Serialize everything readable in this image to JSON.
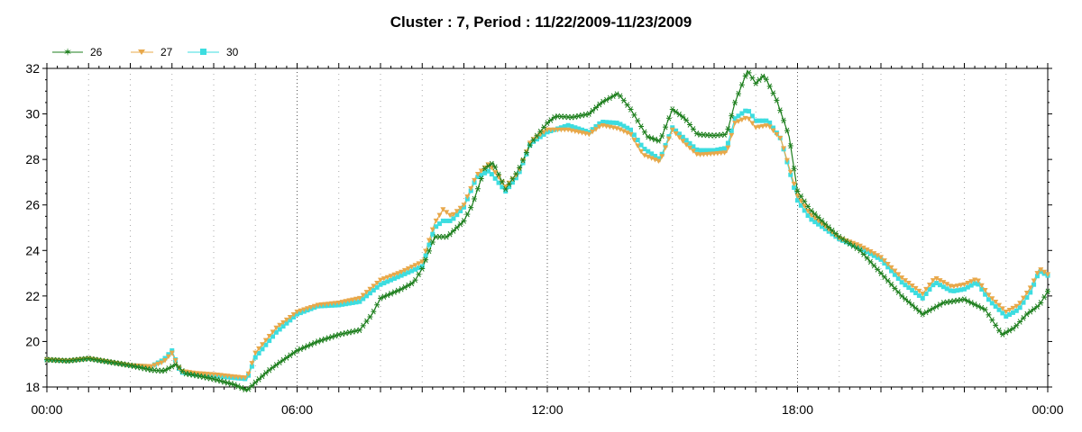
{
  "chart_data": {
    "type": "line",
    "title": "Cluster : 7, Period : 11/22/2009-11/23/2009",
    "xlabel": "",
    "ylabel": "",
    "x_tick_labels": [
      "00:00",
      "06:00",
      "12:00",
      "18:00",
      "00:00"
    ],
    "x_tick_hours": [
      0,
      6,
      12,
      18,
      24
    ],
    "xlim_hours": [
      0,
      24
    ],
    "ylim": [
      18,
      32
    ],
    "y_ticks": [
      18,
      20,
      22,
      24,
      26,
      28,
      30,
      32
    ],
    "grid": "dotted vertical lines",
    "legend_position": "top-left",
    "series": [
      {
        "name": "26",
        "color": "#1e7f1e",
        "marker": "asterisk",
        "points": [
          [
            0,
            19.2
          ],
          [
            0.5,
            19.15
          ],
          [
            1,
            19.25
          ],
          [
            1.5,
            19.1
          ],
          [
            2,
            18.95
          ],
          [
            2.5,
            18.75
          ],
          [
            2.8,
            18.7
          ],
          [
            3.1,
            19.0
          ],
          [
            3.3,
            18.6
          ],
          [
            3.6,
            18.5
          ],
          [
            4,
            18.35
          ],
          [
            4.5,
            18.1
          ],
          [
            4.8,
            17.85
          ],
          [
            5.0,
            18.2
          ],
          [
            5.3,
            18.7
          ],
          [
            5.6,
            19.1
          ],
          [
            6,
            19.6
          ],
          [
            6.5,
            20.0
          ],
          [
            7,
            20.3
          ],
          [
            7.5,
            20.5
          ],
          [
            7.8,
            21.2
          ],
          [
            8,
            21.9
          ],
          [
            8.5,
            22.3
          ],
          [
            8.8,
            22.6
          ],
          [
            9,
            23.2
          ],
          [
            9.3,
            24.6
          ],
          [
            9.6,
            24.6
          ],
          [
            10,
            25.3
          ],
          [
            10.2,
            26.0
          ],
          [
            10.5,
            27.6
          ],
          [
            10.7,
            27.85
          ],
          [
            11,
            26.7
          ],
          [
            11.3,
            27.5
          ],
          [
            11.6,
            28.7
          ],
          [
            12,
            29.6
          ],
          [
            12.2,
            29.9
          ],
          [
            12.6,
            29.85
          ],
          [
            13,
            30.0
          ],
          [
            13.3,
            30.5
          ],
          [
            13.7,
            30.9
          ],
          [
            14,
            30.2
          ],
          [
            14.4,
            29.0
          ],
          [
            14.7,
            28.8
          ],
          [
            15,
            30.2
          ],
          [
            15.3,
            29.8
          ],
          [
            15.6,
            29.1
          ],
          [
            16,
            29.05
          ],
          [
            16.3,
            29.1
          ],
          [
            16.5,
            30.5
          ],
          [
            16.8,
            31.9
          ],
          [
            17,
            31.35
          ],
          [
            17.2,
            31.7
          ],
          [
            17.5,
            30.6
          ],
          [
            17.8,
            29.0
          ],
          [
            18,
            26.6
          ],
          [
            18.3,
            25.8
          ],
          [
            18.7,
            25.1
          ],
          [
            19,
            24.6
          ],
          [
            19.5,
            24.0
          ],
          [
            20,
            23.0
          ],
          [
            20.5,
            22.0
          ],
          [
            21,
            21.2
          ],
          [
            21.5,
            21.7
          ],
          [
            22,
            21.85
          ],
          [
            22.5,
            21.4
          ],
          [
            22.9,
            20.3
          ],
          [
            23.2,
            20.6
          ],
          [
            23.5,
            21.2
          ],
          [
            23.8,
            21.6
          ],
          [
            24,
            22.2
          ]
        ]
      },
      {
        "name": "27",
        "color": "#e8a84a",
        "marker": "triangle-down",
        "points": [
          [
            0,
            19.2
          ],
          [
            0.5,
            19.15
          ],
          [
            1,
            19.25
          ],
          [
            1.5,
            19.1
          ],
          [
            2,
            18.95
          ],
          [
            2.5,
            18.9
          ],
          [
            2.8,
            19.1
          ],
          [
            3.0,
            19.5
          ],
          [
            3.2,
            18.7
          ],
          [
            3.6,
            18.6
          ],
          [
            4,
            18.55
          ],
          [
            4.5,
            18.45
          ],
          [
            4.8,
            18.4
          ],
          [
            5.0,
            19.5
          ],
          [
            5.5,
            20.6
          ],
          [
            6,
            21.3
          ],
          [
            6.5,
            21.6
          ],
          [
            7,
            21.7
          ],
          [
            7.5,
            21.9
          ],
          [
            8,
            22.7
          ],
          [
            8.5,
            23.05
          ],
          [
            9,
            23.5
          ],
          [
            9.3,
            25.2
          ],
          [
            9.5,
            25.8
          ],
          [
            9.7,
            25.5
          ],
          [
            10,
            26.0
          ],
          [
            10.3,
            27.3
          ],
          [
            10.6,
            27.8
          ],
          [
            11,
            26.8
          ],
          [
            11.3,
            27.4
          ],
          [
            11.6,
            28.8
          ],
          [
            12,
            29.3
          ],
          [
            12.5,
            29.3
          ],
          [
            13,
            29.1
          ],
          [
            13.3,
            29.5
          ],
          [
            13.7,
            29.35
          ],
          [
            14,
            29.1
          ],
          [
            14.3,
            28.2
          ],
          [
            14.7,
            27.9
          ],
          [
            15,
            29.3
          ],
          [
            15.3,
            28.7
          ],
          [
            15.6,
            28.2
          ],
          [
            16,
            28.25
          ],
          [
            16.3,
            28.3
          ],
          [
            16.5,
            29.6
          ],
          [
            16.8,
            29.85
          ],
          [
            17,
            29.4
          ],
          [
            17.3,
            29.5
          ],
          [
            17.6,
            28.9
          ],
          [
            18,
            26.4
          ],
          [
            18.3,
            25.6
          ],
          [
            18.7,
            25.0
          ],
          [
            19,
            24.55
          ],
          [
            19.5,
            24.2
          ],
          [
            20,
            23.7
          ],
          [
            20.5,
            22.8
          ],
          [
            21,
            22.1
          ],
          [
            21.3,
            22.8
          ],
          [
            21.7,
            22.4
          ],
          [
            22,
            22.5
          ],
          [
            22.3,
            22.75
          ],
          [
            22.6,
            22.0
          ],
          [
            23,
            21.3
          ],
          [
            23.3,
            21.6
          ],
          [
            23.6,
            22.4
          ],
          [
            23.8,
            23.2
          ],
          [
            24,
            22.95
          ]
        ]
      },
      {
        "name": "30",
        "color": "#3ddde0",
        "marker": "square",
        "points": [
          [
            0,
            19.2
          ],
          [
            0.5,
            19.15
          ],
          [
            1,
            19.25
          ],
          [
            1.5,
            19.1
          ],
          [
            2,
            18.95
          ],
          [
            2.5,
            18.9
          ],
          [
            2.8,
            19.2
          ],
          [
            3.0,
            19.6
          ],
          [
            3.2,
            18.65
          ],
          [
            3.6,
            18.55
          ],
          [
            4,
            18.5
          ],
          [
            4.5,
            18.4
          ],
          [
            4.8,
            18.35
          ],
          [
            5.0,
            19.3
          ],
          [
            5.5,
            20.4
          ],
          [
            6,
            21.2
          ],
          [
            6.5,
            21.55
          ],
          [
            7,
            21.6
          ],
          [
            7.5,
            21.75
          ],
          [
            8,
            22.5
          ],
          [
            8.5,
            22.9
          ],
          [
            9,
            23.3
          ],
          [
            9.3,
            25.0
          ],
          [
            9.5,
            25.3
          ],
          [
            9.7,
            25.3
          ],
          [
            10,
            25.9
          ],
          [
            10.3,
            27.2
          ],
          [
            10.6,
            27.5
          ],
          [
            11,
            26.6
          ],
          [
            11.3,
            27.3
          ],
          [
            11.6,
            28.7
          ],
          [
            12,
            29.2
          ],
          [
            12.5,
            29.5
          ],
          [
            13,
            29.2
          ],
          [
            13.3,
            29.65
          ],
          [
            13.7,
            29.6
          ],
          [
            14,
            29.3
          ],
          [
            14.3,
            28.5
          ],
          [
            14.7,
            28.0
          ],
          [
            15,
            29.4
          ],
          [
            15.3,
            28.9
          ],
          [
            15.6,
            28.4
          ],
          [
            16,
            28.4
          ],
          [
            16.3,
            28.5
          ],
          [
            16.5,
            29.8
          ],
          [
            16.8,
            30.2
          ],
          [
            17,
            29.7
          ],
          [
            17.3,
            29.7
          ],
          [
            17.6,
            28.9
          ],
          [
            18,
            26.2
          ],
          [
            18.3,
            25.4
          ],
          [
            18.7,
            24.9
          ],
          [
            19,
            24.5
          ],
          [
            19.5,
            24.1
          ],
          [
            20,
            23.6
          ],
          [
            20.5,
            22.6
          ],
          [
            21,
            21.9
          ],
          [
            21.3,
            22.6
          ],
          [
            21.7,
            22.2
          ],
          [
            22,
            22.3
          ],
          [
            22.3,
            22.6
          ],
          [
            22.6,
            21.8
          ],
          [
            23,
            21.1
          ],
          [
            23.3,
            21.4
          ],
          [
            23.6,
            22.2
          ],
          [
            23.8,
            23.1
          ],
          [
            24,
            22.9
          ]
        ]
      }
    ]
  }
}
